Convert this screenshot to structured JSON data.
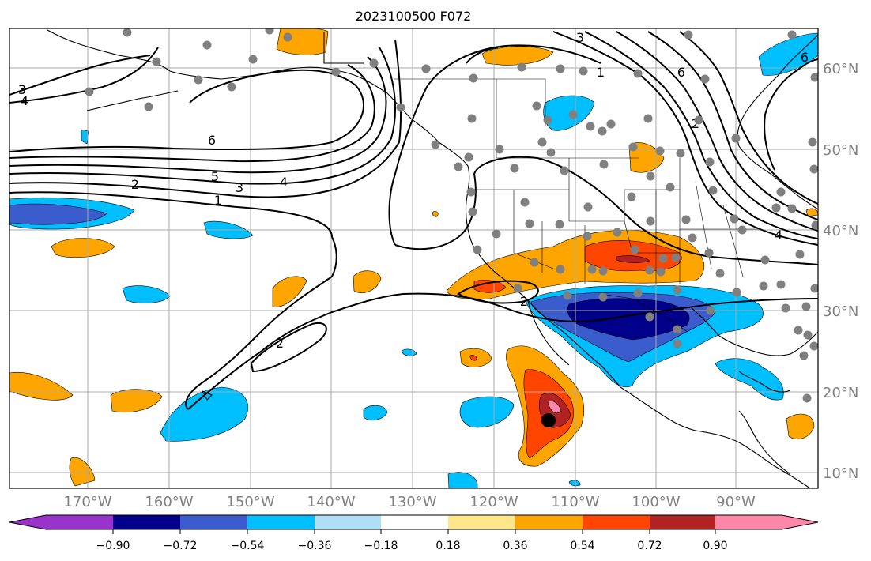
{
  "title": "2023100500 F072",
  "map": {
    "lon_labels": [
      "170°W",
      "160°W",
      "150°W",
      "140°W",
      "130°W",
      "120°W",
      "110°W",
      "100°W",
      "90°W"
    ],
    "lat_labels": [
      "60°N",
      "50°N",
      "40°N",
      "30°N",
      "20°N",
      "10°N"
    ],
    "contour_labels": [
      "3",
      "4",
      "6",
      "5",
      "4",
      "3",
      "2",
      "1",
      "2",
      "2",
      "3",
      "1",
      "6",
      "6",
      "4",
      "2"
    ],
    "grid": true,
    "coastlines": true,
    "station_marker_color": "#808080",
    "highlight_marker_color": "#000000"
  },
  "colorbar": {
    "ticks": [
      "−0.90",
      "−0.72",
      "−0.54",
      "−0.36",
      "−0.18",
      "0.18",
      "0.36",
      "0.54",
      "0.72",
      "0.90"
    ],
    "colors": [
      "#9933cc",
      "#00008b",
      "#3a5ccc",
      "#00bfff",
      "#aedff7",
      "#ffffff",
      "#ffe68a",
      "#ffa500",
      "#ff4500",
      "#b22222",
      "#ff88aa"
    ]
  }
}
